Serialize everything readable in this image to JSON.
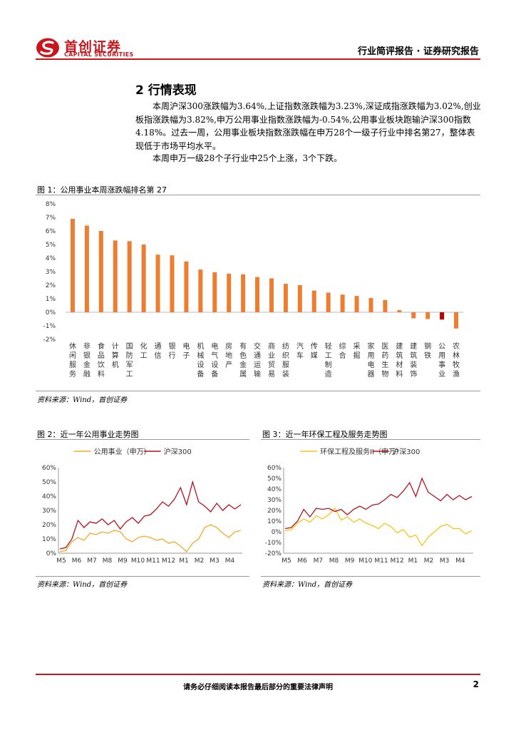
{
  "header": {
    "logo_cn": "首创证券",
    "logo_en": "CAPITAL SECURITIES",
    "report_type": "行业简评报告 · 证券研究报告"
  },
  "section": {
    "title": "2 行情表现",
    "paragraphs": [
      "本周沪深300涨跌幅为3.64%,上证指数涨跌幅为3.23%,深证成指涨跌幅为3.02%,创业板指涨跌幅为3.82%,申万公用事业指数涨跌幅为-0.54%,公用事业板块跑输沪深300指数4.18%。过去一周，公用事业板块指数涨跌幅在申万28个一级子行业中排名第27，整体表现低于市场平均水平。",
      "本周申万一级28个子行业中25个上涨，3个下跌。"
    ]
  },
  "figures": {
    "fig1_title": "图 1：公用事业本周涨跌幅排名第 27",
    "fig1_source": "资料来源：Wind，首创证券",
    "fig2_title": "图 2：近一年公用事业走势图",
    "fig2_source": "资料来源：Wind，首创证券",
    "fig3_title": "图 3：近一年环保工程及服务走势图",
    "fig3_source": "资料来源：Wind，首创证券"
  },
  "chart_data": [
    {
      "type": "bar",
      "categories": [
        "休闲服务",
        "非银金融",
        "食品饮料",
        "计算机",
        "国防军工",
        "化工",
        "通信",
        "银行",
        "电子",
        "机械设备",
        "电气设备",
        "房地产",
        "有色金属",
        "交通运输",
        "商业贸易",
        "纺织服装",
        "汽车",
        "传媒",
        "轻工制造",
        "综合",
        "采掘",
        "家用电器",
        "医药生物",
        "建筑材料",
        "建筑装饰",
        "钢铁",
        "公用事业",
        "农林牧渔"
      ],
      "values": [
        6.9,
        6.4,
        6.0,
        5.3,
        5.25,
        5.0,
        4.25,
        4.2,
        3.75,
        3.15,
        2.95,
        2.85,
        2.8,
        2.6,
        2.5,
        2.1,
        2.0,
        1.6,
        1.45,
        1.3,
        1.2,
        1.05,
        0.9,
        0.15,
        -0.45,
        -0.5,
        -0.54,
        -1.2
      ],
      "highlight": "公用事业",
      "highlight_color": "#c00000",
      "bar_color": "#ed7d31",
      "ylim": [
        -2,
        8
      ],
      "yticks": [
        "-2%",
        "-1%",
        "0%",
        "1%",
        "2%",
        "3%",
        "4%",
        "5%",
        "6%",
        "7%",
        "8%"
      ],
      "grid": false
    },
    {
      "type": "line",
      "x_labels": [
        "M5",
        "M6",
        "M7",
        "M8",
        "M9",
        "M10",
        "M11",
        "M12",
        "M1",
        "M2",
        "M3",
        "M4"
      ],
      "yticks": [
        "0%",
        "10%",
        "20%",
        "30%",
        "40%",
        "50%",
        "60%"
      ],
      "ylim": [
        0,
        60
      ],
      "series": [
        {
          "name": "公用事业（申万）",
          "color": "#f4a82a",
          "values": [
            1,
            2,
            8,
            11,
            9,
            14,
            13,
            15,
            14,
            16,
            15,
            10,
            8,
            11,
            12,
            11,
            9,
            10,
            7,
            8,
            5,
            1,
            7,
            10,
            18,
            20,
            18,
            14,
            11,
            15,
            16
          ]
        },
        {
          "name": "沪深300",
          "color": "#b3121d",
          "values": [
            3,
            4,
            10,
            23,
            18,
            22,
            21,
            24,
            20,
            23,
            17,
            22,
            25,
            21,
            26,
            27,
            31,
            36,
            33,
            38,
            46,
            34,
            50,
            36,
            33,
            29,
            35,
            30,
            34,
            31,
            34
          ]
        }
      ]
    },
    {
      "type": "line",
      "x_labels": [
        "M5",
        "M6",
        "M7",
        "M8",
        "M9",
        "M10",
        "M11",
        "M12",
        "M1",
        "M2",
        "M3",
        "M4"
      ],
      "yticks": [
        "-20%",
        "-10%",
        "0%",
        "10%",
        "20%",
        "30%",
        "40%",
        "50%",
        "60%"
      ],
      "ylim": [
        -20,
        60
      ],
      "series": [
        {
          "name": "环保工程及服务II（申万）",
          "color": "#f5c518",
          "values": [
            1,
            2,
            8,
            12,
            9,
            15,
            12,
            16,
            22,
            11,
            14,
            9,
            12,
            8,
            6,
            3,
            8,
            5,
            -1,
            2,
            -5,
            -3,
            -13,
            -5,
            0,
            5,
            7,
            3,
            3,
            -2,
            1
          ]
        },
        {
          "name": "沪深300",
          "color": "#b3121d",
          "values": [
            3,
            4,
            10,
            21,
            14,
            22,
            21,
            22,
            19,
            21,
            16,
            21,
            24,
            21,
            25,
            26,
            30,
            35,
            32,
            38,
            46,
            33,
            50,
            37,
            33,
            29,
            35,
            30,
            34,
            30,
            33
          ]
        }
      ]
    }
  ]
}
